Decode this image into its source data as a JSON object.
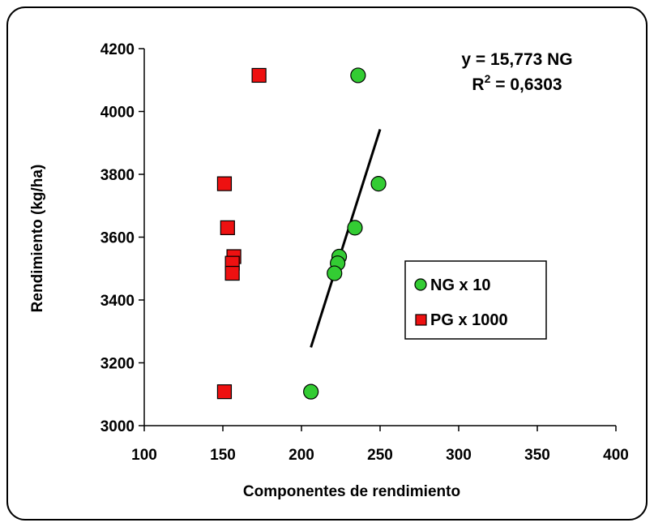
{
  "chart_data": {
    "type": "scatter",
    "xlabel": "Componentes de rendimiento",
    "ylabel": "Rendimiento (kg/ha)",
    "xlim": [
      100,
      400
    ],
    "ylim": [
      3000,
      4200
    ],
    "x_ticks": [
      100,
      150,
      200,
      250,
      300,
      350,
      400
    ],
    "y_ticks": [
      3000,
      3200,
      3400,
      3600,
      3800,
      4000,
      4200
    ],
    "grid": false,
    "legend_position": "right",
    "series": [
      {
        "name": "NG x 10",
        "marker": "circle",
        "color": "#33cc33",
        "points": [
          {
            "x": 236,
            "y": 4115
          },
          {
            "x": 249,
            "y": 3770
          },
          {
            "x": 234,
            "y": 3630
          },
          {
            "x": 224,
            "y": 3538
          },
          {
            "x": 223,
            "y": 3517
          },
          {
            "x": 221,
            "y": 3485
          },
          {
            "x": 206,
            "y": 3108
          }
        ]
      },
      {
        "name": "PG x 1000",
        "marker": "square",
        "color": "#ee1111",
        "points": [
          {
            "x": 173,
            "y": 4115
          },
          {
            "x": 151,
            "y": 3770
          },
          {
            "x": 153,
            "y": 3630
          },
          {
            "x": 157,
            "y": 3538
          },
          {
            "x": 156,
            "y": 3517
          },
          {
            "x": 156,
            "y": 3485
          },
          {
            "x": 151,
            "y": 3108
          }
        ]
      }
    ],
    "trendline": {
      "series": "NG x 10",
      "x_range": [
        206,
        250
      ],
      "slope": 15.773,
      "equation": "y = 15,773 NG",
      "r2_prefix": "R",
      "r2_sup": "2",
      "r2_suffix": " = 0,6303"
    }
  }
}
